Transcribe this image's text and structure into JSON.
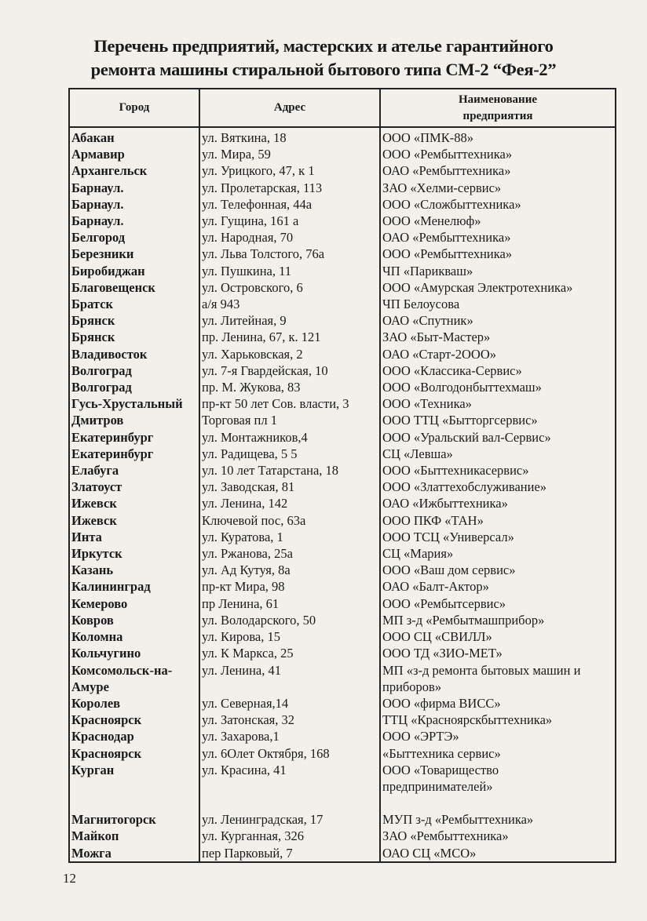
{
  "title": "Перечень предприятий, мастерских и ателье гарантийного\nремонта  машины стиральной бытового типа  СМ-2 “Фея-2”",
  "table": {
    "headers": [
      "Город",
      "Адрес",
      "Наименование\nпредприятия"
    ],
    "rows": [
      [
        "Абакан",
        "ул. Вяткина, 18",
        "ООО «ПМК-88»"
      ],
      [
        "Армавир",
        "ул. Мира, 59",
        "ООО «Рембыттехника»"
      ],
      [
        "Архангельск",
        "ул. Урицкого, 47, к 1",
        "ОАО «Рембыттехника»"
      ],
      [
        "Барнаул.",
        "ул. Пролетарская, 113",
        "ЗАО «Хелми-сервис»"
      ],
      [
        "Барнаул.",
        "ул. Телефонная, 44а",
        "ООО «Сложбыттехника»"
      ],
      [
        "Барнаул.",
        "ул. Гущина, 161 а",
        "ООО «Менелюф»"
      ],
      [
        "Белгород",
        "ул. Народная, 70",
        "ОАО «Рембыттехника»"
      ],
      [
        "Березники",
        "ул. Льва Толстого, 76а",
        "ООО «Рембыттехника»"
      ],
      [
        "Биробиджан",
        "ул. Пушкина, 11",
        "ЧП «Парикваш»"
      ],
      [
        "Благовещенск",
        "ул. Островского, 6",
        "ООО «Амурская Электротехника»"
      ],
      [
        "Братск",
        "а/я 943",
        "ЧП Белоусова"
      ],
      [
        "Брянск",
        "ул. Литейная, 9",
        "ОАО «Спутник»"
      ],
      [
        "Брянск",
        "пр. Ленина, 67, к. 121",
        "ЗАО «Быт-Мастер»"
      ],
      [
        "Владивосток",
        "ул. Харьковская, 2",
        "ОАО «Старт-2ООО»"
      ],
      [
        "Волгоград",
        "ул. 7-я Гвардейская, 10",
        "ООО «Классика-Сервис»"
      ],
      [
        "Волгоград",
        "пр. М. Жукова, 83",
        "ООО «Волгодонбыттехмаш»"
      ],
      [
        "Гусь-Хрустальный",
        "пр-кт 50 лет Сов. власти, 3",
        "ООО «Техника»"
      ],
      [
        "Дмитров",
        "Торговая пл 1",
        "ООО ТТЦ «Бытторгсервис»"
      ],
      [
        "Екатеринбург",
        "ул. Монтажников,4",
        "ООО «Уральский вал-Сервис»"
      ],
      [
        "Екатеринбург",
        "ул. Радищева, 5 5",
        "СЦ «Левша»"
      ],
      [
        "Елабуга",
        "ул. 10 лет Татарстана, 18",
        "ООО «Быттехникасервис»"
      ],
      [
        "Златоуст",
        "ул. Заводская, 81",
        "ООО «Златтехобслуживание»"
      ],
      [
        "Ижевск",
        "ул. Ленина, 142",
        "ОАО «Ижбыттехника»"
      ],
      [
        "Ижевск",
        "Ключевой пос, 63а",
        "ООО ПКФ «ТАН»"
      ],
      [
        "Инта",
        "ул. Куратова, 1",
        "ООО ТСЦ «Универсал»"
      ],
      [
        "Иркутск",
        "ул. Ржанова, 25а",
        "СЦ «Мария»"
      ],
      [
        "Казань",
        "ул. Ад Кутуя, 8а",
        "ООО «Ваш дом сервис»"
      ],
      [
        "Калининград",
        "пр-кт Мира, 98",
        "ОАО «Балт-Актор»"
      ],
      [
        "Кемерово",
        "пр Ленина, 61",
        "ООО «Рембытсервис»"
      ],
      [
        "Ковров",
        "ул. Володарского, 50",
        "МП з-д «Рембытмашприбор»"
      ],
      [
        "Коломна",
        "ул. Кирова, 15",
        "ООО СЦ «СВИЛЛ»"
      ],
      [
        "Кольчугино",
        "ул. К Маркса, 25",
        "ООО ТД «ЗИО-МЕТ»"
      ],
      [
        "Комсомольск-на-\nАмуре",
        "ул. Ленина, 41",
        "МП «з-д ремонта бытовых машин и\nприборов»"
      ],
      [
        "Королев",
        "ул. Северная,14",
        "ООО «фирма ВИСС»"
      ],
      [
        "Красноярск",
        "ул. Затонская, 32",
        "ТТЦ «Красноярскбыттехника»"
      ],
      [
        "Краснодар",
        "ул. Захарова,1",
        "ООО «ЭРТЭ»"
      ],
      [
        "Красноярск",
        "ул. 6Олет Октября, 168",
        "«Быттехника сервис»"
      ],
      [
        "Курган",
        "ул. Красина, 41",
        "ООО «Товарищество\nпредпринимателей»"
      ],
      [
        "Магнитогорск",
        "ул. Ленинградская, 17",
        "МУП з-д «Рембыттехника»"
      ],
      [
        "Майкоп",
        "ул. Курганная, 326",
        "ЗАО «Рембыттехника»"
      ],
      [
        "Можга",
        "пер Парковый, 7",
        "ОАО СЦ «МСО»"
      ]
    ]
  },
  "page_number": "12"
}
